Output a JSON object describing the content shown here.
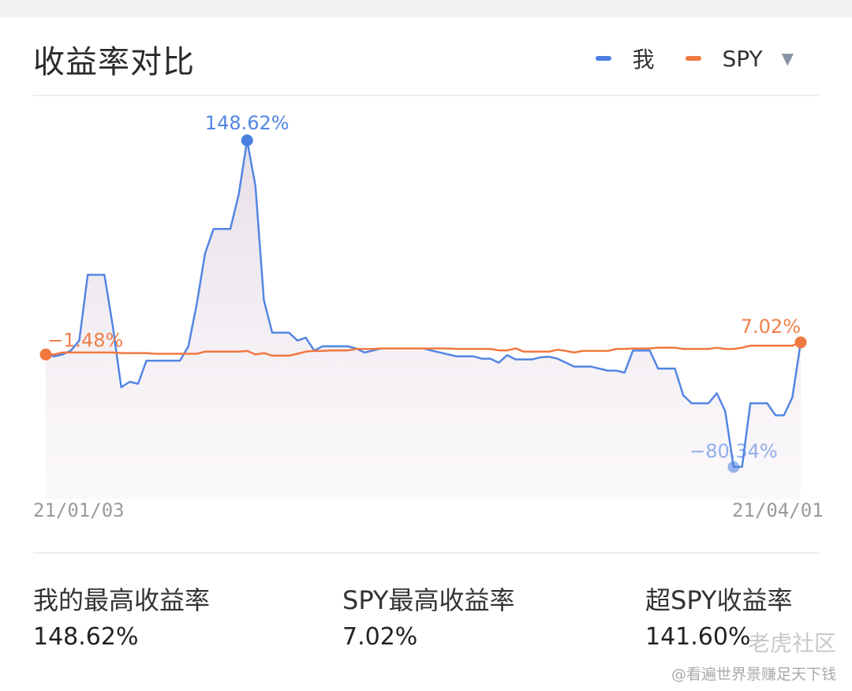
{
  "header": {
    "title": "收益率对比"
  },
  "legend": {
    "items": [
      {
        "label": "我",
        "color": "#4b7fe0"
      },
      {
        "label": "SPY",
        "color": "#f07840"
      }
    ],
    "caret": "▼"
  },
  "chart_data": {
    "type": "line",
    "x_start": "21/01/03",
    "x_end": "21/04/01",
    "ylim": [
      -90,
      160
    ],
    "grid": false,
    "legend_placement": "top-right",
    "series": [
      {
        "name": "我",
        "color": "#4b7fe0",
        "area_fill": true,
        "values": [
          -1.5,
          -2.8,
          -1.5,
          1.3,
          8.3,
          54.4,
          54.4,
          54.4,
          17.8,
          -24.5,
          -20.6,
          -22.0,
          -5.8,
          -5.8,
          -5.8,
          -5.8,
          -5.8,
          4.3,
          33.9,
          69.5,
          86.5,
          86.5,
          86.5,
          110.6,
          148.6,
          116.7,
          36.7,
          13.8,
          13.8,
          13.8,
          8.3,
          10.3,
          1.3,
          4.3,
          4.3,
          4.3,
          4.3,
          2.8,
          -0.1,
          1.3,
          2.8,
          2.8,
          2.8,
          2.8,
          2.8,
          2.8,
          1.3,
          -0.1,
          -1.5,
          -2.8,
          -2.8,
          -2.8,
          -4.4,
          -4.4,
          -7.2,
          -2.0,
          -4.9,
          -4.9,
          -4.9,
          -3.4,
          -3.0,
          -4.4,
          -7.2,
          -10.0,
          -10.0,
          -10.0,
          -11.4,
          -12.8,
          -12.8,
          -14.2,
          1.3,
          1.3,
          1.3,
          -11.4,
          -11.4,
          -11.4,
          -30.1,
          -35.7,
          -35.7,
          -35.7,
          -28.7,
          -41.3,
          -80.3,
          -80.3,
          -35.7,
          -35.7,
          -35.7,
          -44.1,
          -44.1,
          -31.5,
          7.0
        ],
        "annotations": [
          {
            "label": "148.62%",
            "value": 148.62
          },
          {
            "label": "−80.34%",
            "value": -80.34
          }
        ]
      },
      {
        "name": "SPY",
        "color": "#f07840",
        "area_fill": false,
        "values": [
          -1.5,
          -1.5,
          -0.1,
          -0.1,
          -0.1,
          -0.1,
          -0.1,
          -0.1,
          -0.1,
          -0.5,
          -0.5,
          -0.5,
          -0.5,
          -1.0,
          -1.0,
          -1.0,
          -1.0,
          -1.0,
          -1.0,
          0.5,
          0.5,
          0.5,
          0.5,
          0.5,
          1.0,
          -1.5,
          -0.5,
          -2.3,
          -2.3,
          -2.3,
          -1.0,
          0.5,
          1.0,
          1.0,
          1.4,
          1.4,
          1.4,
          2.4,
          2.4,
          2.4,
          2.8,
          2.8,
          2.8,
          2.8,
          2.8,
          2.8,
          2.8,
          2.8,
          2.8,
          2.4,
          2.4,
          2.4,
          2.4,
          2.4,
          1.4,
          1.4,
          2.8,
          0.5,
          0.5,
          0.5,
          0.5,
          1.9,
          1.0,
          -0.1,
          1.0,
          1.0,
          1.0,
          1.0,
          2.4,
          2.4,
          2.8,
          2.8,
          2.8,
          3.3,
          3.3,
          3.3,
          2.4,
          2.4,
          2.4,
          2.4,
          3.3,
          2.4,
          2.4,
          3.3,
          4.7,
          4.7,
          4.7,
          4.7,
          4.7,
          4.7,
          7.0
        ],
        "annotations": [
          {
            "label": "−1.48%",
            "value": -1.48
          },
          {
            "label": "7.02%",
            "value": 7.02
          }
        ]
      }
    ]
  },
  "stats": [
    {
      "label": "我的最高收益率",
      "value": "148.62%"
    },
    {
      "label": "SPY最高收益率",
      "value": "7.02%"
    },
    {
      "label": "超SPY收益率",
      "value": "141.60%"
    }
  ],
  "watermark": {
    "line1": "老虎社区",
    "line2": "@看遍世界景赚足天下钱"
  }
}
